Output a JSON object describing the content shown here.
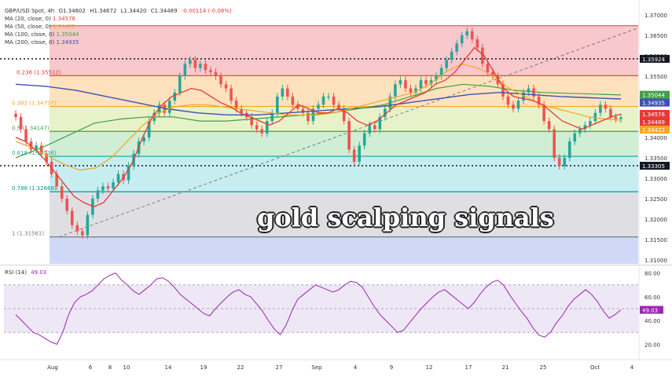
{
  "header": {
    "symbol": "GBP/USD Spot, 4h",
    "o_label": "O",
    "o": "1.34602",
    "h_label": "H",
    "h": "1.34672",
    "l_label": "L",
    "l": "1.34420",
    "c_label": "C",
    "c": "1.34489",
    "change": "-0.00114 (-0.08%)"
  },
  "ma_legend": [
    {
      "label": "MA (20, close, 0)",
      "value": "1.34576",
      "color": "#e53935"
    },
    {
      "label": "MA (50, close, 0)",
      "value": "1.34422",
      "color": "#f5a623"
    },
    {
      "label": "MA (100, close, 0)",
      "value": "1.35044",
      "color": "#43a047"
    },
    {
      "label": "MA (200, close, 0)",
      "value": "1.34935",
      "color": "#3f51b5"
    }
  ],
  "overlay_text": "gold scalping signals",
  "rsi_legend": {
    "label": "RSI (14)",
    "value": "49.03"
  },
  "chart_data": {
    "type": "candlestick",
    "y_range": [
      1.309,
      1.3725
    ],
    "y_ticks": [
      "1.37000",
      "1.36500",
      "1.36000",
      "1.35500",
      "1.35000",
      "1.34500",
      "1.34000",
      "1.33500",
      "1.33000",
      "1.32500",
      "1.32000",
      "1.31500",
      "1.31000"
    ],
    "y_tick_values": [
      1.37,
      1.365,
      1.36,
      1.355,
      1.35,
      1.345,
      1.34,
      1.335,
      1.33,
      1.325,
      1.32,
      1.315,
      1.31
    ],
    "x_labels": [
      "Aug",
      "6",
      "8",
      "10",
      "14",
      "19",
      "22",
      "27",
      "Sep",
      "4",
      "9",
      "12",
      "17",
      "21",
      "25",
      "Oct",
      "4"
    ],
    "fib_levels": [
      {
        "label": "0.236 (1.35512)",
        "value": 1.35512,
        "color": "#e53935"
      },
      {
        "label": "0.382 (1.34757)",
        "value": 1.34757,
        "color": "#f5a623"
      },
      {
        "label": "0.5 (1.34147)",
        "value": 1.34147,
        "color": "#43a047"
      },
      {
        "label": "0.618 (1.33536)",
        "value": 1.33536,
        "color": "#26a69a"
      },
      {
        "label": "0.786 (1.32668)",
        "value": 1.32668,
        "color": "#0097a7"
      },
      {
        "label": "1 (1.31561)",
        "value": 1.31561,
        "color": "#787b86"
      }
    ],
    "fib_top": 1.36735,
    "fib_bands": [
      {
        "from": 1.36735,
        "to": 1.35512,
        "color": "#f8c8cd"
      },
      {
        "from": 1.35512,
        "to": 1.34757,
        "color": "#fde2bd"
      },
      {
        "from": 1.34757,
        "to": 1.34147,
        "color": "#e8f2c9"
      },
      {
        "from": 1.34147,
        "to": 1.33536,
        "color": "#cfeed5"
      },
      {
        "from": 1.33536,
        "to": 1.32668,
        "color": "#c6eef0"
      },
      {
        "from": 1.32668,
        "to": 1.31561,
        "color": "#dfdfe3"
      },
      {
        "from": 1.31561,
        "to": 1.309,
        "color": "#cfd9f7"
      }
    ],
    "hlines_dotted": [
      {
        "value": 1.35924,
        "label": "1.35924"
      },
      {
        "value": 1.33305,
        "label": "1.33305"
      }
    ],
    "price_tags": [
      {
        "value": 1.35044,
        "label": "1.35044",
        "color": "#43a047"
      },
      {
        "value": 1.34935,
        "label": "1.34935",
        "color": "#3f51b5"
      },
      {
        "value": 1.34576,
        "label": "1.34576",
        "color": "#e53935"
      },
      {
        "value": 1.34489,
        "label": "1.34489",
        "color": "#e53935"
      },
      {
        "value": 1.34422,
        "label": "1.34422",
        "color": "#f5a623"
      }
    ],
    "trendline": {
      "from": [
        0,
        1.3156
      ],
      "to": [
        1,
        1.3668
      ]
    },
    "close": [
      1.345,
      1.342,
      1.339,
      1.337,
      1.338,
      1.336,
      1.334,
      1.331,
      1.328,
      1.325,
      1.322,
      1.3185,
      1.317,
      1.316,
      1.321,
      1.325,
      1.327,
      1.328,
      1.3275,
      1.329,
      1.331,
      1.3295,
      1.333,
      1.336,
      1.339,
      1.34,
      1.344,
      1.346,
      1.348,
      1.346,
      1.349,
      1.351,
      1.355,
      1.358,
      1.359,
      1.357,
      1.358,
      1.3565,
      1.356,
      1.355,
      1.353,
      1.352,
      1.349,
      1.347,
      1.346,
      1.345,
      1.343,
      1.342,
      1.341,
      1.344,
      1.346,
      1.35,
      1.352,
      1.35,
      1.348,
      1.347,
      1.346,
      1.344,
      1.347,
      1.348,
      1.35,
      1.35,
      1.348,
      1.347,
      1.344,
      1.337,
      1.334,
      1.338,
      1.341,
      1.343,
      1.342,
      1.345,
      1.347,
      1.35,
      1.353,
      1.354,
      1.352,
      1.351,
      1.352,
      1.354,
      1.353,
      1.354,
      1.355,
      1.357,
      1.359,
      1.361,
      1.363,
      1.365,
      1.366,
      1.364,
      1.362,
      1.358,
      1.356,
      1.355,
      1.353,
      1.35,
      1.348,
      1.347,
      1.349,
      1.351,
      1.352,
      1.35,
      1.348,
      1.344,
      1.342,
      1.335,
      1.333,
      1.335,
      1.339,
      1.341,
      1.342,
      1.343,
      1.344,
      1.346,
      1.348,
      1.347,
      1.345,
      1.3445,
      1.3449
    ],
    "ma20": [
      1.34,
      1.339,
      1.337,
      1.3345,
      1.3315,
      1.3285,
      1.3255,
      1.324,
      1.323,
      1.324,
      1.327,
      1.33,
      1.334,
      1.34,
      1.345,
      1.348,
      1.35,
      1.351,
      1.352,
      1.3515,
      1.35,
      1.3485,
      1.3475,
      1.346,
      1.345,
      1.344,
      1.343,
      1.344,
      1.346,
      1.348,
      1.347,
      1.346,
      1.346,
      1.347,
      1.346,
      1.344,
      1.343,
      1.344,
      1.346,
      1.348,
      1.349,
      1.35,
      1.351,
      1.353,
      1.354,
      1.356,
      1.359,
      1.362,
      1.36,
      1.356,
      1.352,
      1.35,
      1.3495,
      1.349,
      1.348,
      1.346,
      1.344,
      1.343,
      1.342,
      1.343,
      1.344,
      1.345,
      1.3457
    ],
    "ma50": [
      1.339,
      1.3375,
      1.3355,
      1.3335,
      1.332,
      1.3325,
      1.335,
      1.339,
      1.343,
      1.346,
      1.3475,
      1.348,
      1.348,
      1.3475,
      1.347,
      1.3465,
      1.346,
      1.3455,
      1.3455,
      1.3455,
      1.346,
      1.347,
      1.348,
      1.349,
      1.35,
      1.351,
      1.353,
      1.356,
      1.358,
      1.357,
      1.355,
      1.352,
      1.35,
      1.348,
      1.347,
      1.346,
      1.345,
      1.3445,
      1.3442
    ],
    "ma100": [
      1.335,
      1.3375,
      1.3405,
      1.3435,
      1.3445,
      1.345,
      1.345,
      1.344,
      1.344,
      1.3445,
      1.345,
      1.3455,
      1.346,
      1.347,
      1.348,
      1.35,
      1.352,
      1.353,
      1.3525,
      1.3515,
      1.351,
      1.3508,
      1.3506,
      1.3504
    ],
    "ma200": [
      1.353,
      1.3525,
      1.3515,
      1.35,
      1.3485,
      1.347,
      1.346,
      1.3455,
      1.3455,
      1.346,
      1.3465,
      1.347,
      1.3475,
      1.3485,
      1.3495,
      1.3505,
      1.351,
      1.3505,
      1.35,
      1.3497,
      1.3494
    ],
    "rsi": {
      "range": [
        15,
        85
      ],
      "ticks": [
        "80.00",
        "60.00",
        "40.00",
        "20.00"
      ],
      "tick_values": [
        80,
        60,
        40,
        20
      ],
      "upper": 70,
      "lower": 30,
      "mid": 50,
      "current_label": "49.03",
      "values": [
        45,
        40,
        35,
        30,
        28,
        25,
        22,
        20,
        30,
        45,
        55,
        60,
        62,
        65,
        70,
        75,
        78,
        80,
        74,
        70,
        65,
        62,
        66,
        70,
        75,
        76,
        73,
        68,
        62,
        58,
        54,
        50,
        46,
        44,
        50,
        55,
        60,
        64,
        66,
        62,
        60,
        54,
        48,
        40,
        33,
        28,
        36,
        48,
        58,
        62,
        66,
        70,
        68,
        66,
        64,
        66,
        70,
        73,
        72,
        68,
        60,
        52,
        45,
        40,
        35,
        30,
        32,
        38,
        44,
        50,
        55,
        60,
        64,
        66,
        62,
        58,
        54,
        50,
        55,
        62,
        68,
        72,
        74,
        70,
        62,
        55,
        48,
        42,
        34,
        28,
        26,
        30,
        38,
        44,
        52,
        58,
        62,
        66,
        62,
        56,
        48,
        42,
        45,
        49
      ]
    }
  }
}
